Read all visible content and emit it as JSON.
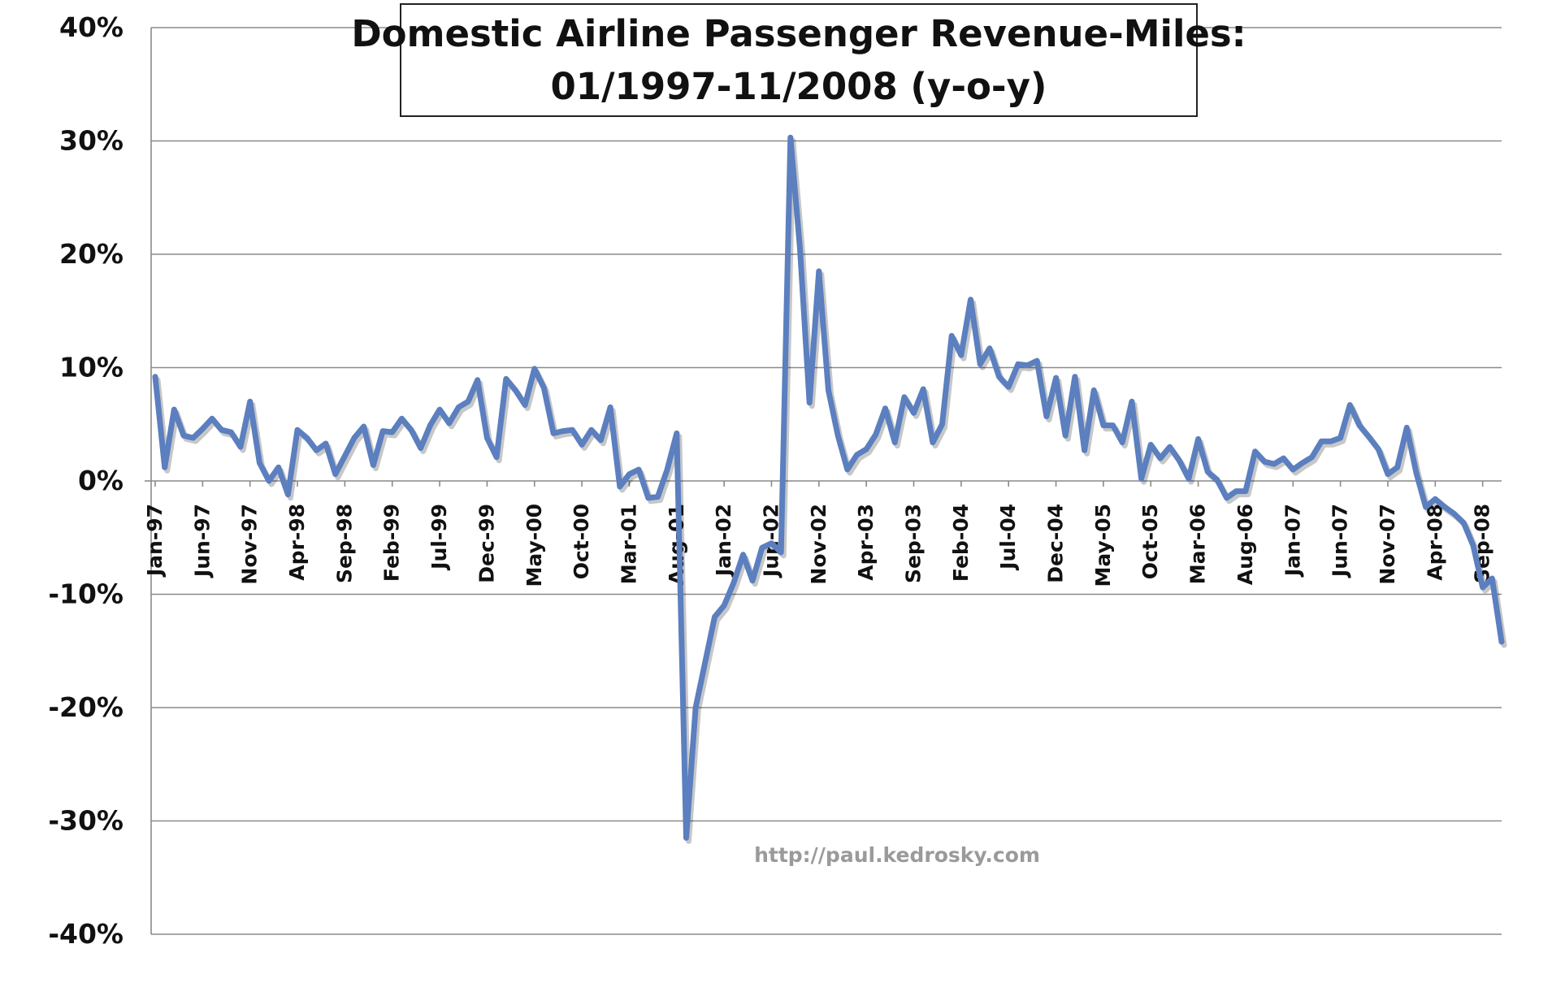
{
  "chart_data": {
    "type": "line",
    "title_line1": "Domestic Airline Passenger Revenue-Miles:",
    "title_line2": "01/1997-11/2008 (y-o-y)",
    "watermark": "http://paul.kedrosky.com",
    "xlabel": "",
    "ylabel": "",
    "ylim": [
      -40,
      40
    ],
    "yticks": [
      40,
      30,
      20,
      10,
      0,
      -10,
      -20,
      -30,
      -40
    ],
    "ytick_labels": [
      "40%",
      "30%",
      "20%",
      "10%",
      "0%",
      "-10%",
      "-20%",
      "-30%",
      "-40%"
    ],
    "grid": true,
    "legend": "none",
    "line_color": "#5b7fbf",
    "x_tick_labels": [
      "Jan-97",
      "Jun-97",
      "Nov-97",
      "Apr-98",
      "Sep-98",
      "Feb-99",
      "Jul-99",
      "Dec-99",
      "May-00",
      "Oct-00",
      "Mar-01",
      "Aug-01",
      "Jan-02",
      "Jun-02",
      "Nov-02",
      "Apr-03",
      "Sep-03",
      "Feb-04",
      "Jul-04",
      "Dec-04",
      "May-05",
      "Oct-05",
      "Mar-06",
      "Aug-06",
      "Jan-07",
      "Jun-07",
      "Nov-07",
      "Apr-08",
      "Sep-08"
    ],
    "x_tick_every_months": 5,
    "x_first": "Jan-97",
    "series": [
      {
        "values": [
          9.2,
          1.2,
          6.3,
          4.0,
          3.8,
          4.6,
          5.5,
          4.5,
          4.3,
          3.0,
          7.0,
          1.6,
          0.0,
          1.2,
          -1.2,
          4.5,
          3.8,
          2.7,
          3.3,
          0.6,
          2.2,
          3.8,
          4.8,
          1.4,
          4.4,
          4.3,
          5.5,
          4.5,
          2.9,
          4.9,
          6.3,
          5.1,
          6.5,
          7.0,
          8.9,
          3.8,
          2.1,
          9.0,
          8.0,
          6.7,
          9.9,
          8.2,
          4.2,
          4.4,
          4.5,
          3.2,
          4.5,
          3.6,
          6.5,
          -0.5,
          0.6,
          1.0,
          -1.5,
          -1.4,
          1.0,
          4.2,
          -31.5,
          -20.0,
          -16.0,
          -12.0,
          -11.0,
          -9.0,
          -6.5,
          -8.8,
          -5.9,
          -5.5,
          -6.3,
          30.3,
          20.5,
          6.9,
          18.5,
          8.0,
          4.0,
          1.0,
          2.3,
          2.8,
          4.1,
          6.4,
          3.4,
          7.4,
          6.0,
          8.1,
          3.4,
          5.0,
          12.8,
          11.1,
          16.0,
          10.3,
          11.7,
          9.2,
          8.3,
          10.3,
          10.2,
          10.6,
          5.7,
          9.1,
          4.0,
          9.2,
          2.7,
          8.0,
          4.9,
          4.9,
          3.4,
          7.0,
          0.2,
          3.2,
          2.0,
          3.0,
          1.8,
          0.2,
          3.7,
          0.8,
          0.1,
          -1.5,
          -0.9,
          -0.9,
          2.6,
          1.7,
          1.5,
          2.0,
          1.0,
          1.6,
          2.1,
          3.5,
          3.5,
          3.8,
          6.7,
          4.9,
          3.9,
          2.8,
          0.6,
          1.2,
          4.7,
          0.7,
          -2.3,
          -1.6,
          -2.3,
          -2.9,
          -3.7,
          -5.7,
          -9.4,
          -8.6,
          -14.2
        ]
      }
    ]
  }
}
